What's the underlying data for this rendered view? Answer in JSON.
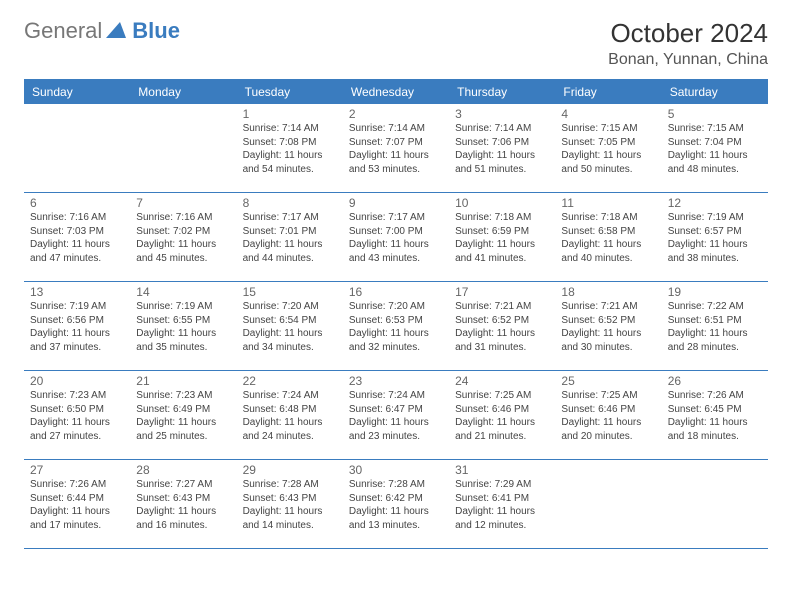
{
  "logo": {
    "general": "General",
    "blue": "Blue"
  },
  "title": "October 2024",
  "location": "Bonan, Yunnan, China",
  "colors": {
    "accent": "#3a7cbf",
    "bg": "#ffffff",
    "text": "#333333",
    "muted": "#666666",
    "sub": "#555555"
  },
  "dayNames": [
    "Sunday",
    "Monday",
    "Tuesday",
    "Wednesday",
    "Thursday",
    "Friday",
    "Saturday"
  ],
  "weeks": [
    [
      {
        "num": "",
        "sunrise": "",
        "sunset": "",
        "daylight": ""
      },
      {
        "num": "",
        "sunrise": "",
        "sunset": "",
        "daylight": ""
      },
      {
        "num": "1",
        "sunrise": "Sunrise: 7:14 AM",
        "sunset": "Sunset: 7:08 PM",
        "daylight": "Daylight: 11 hours and 54 minutes."
      },
      {
        "num": "2",
        "sunrise": "Sunrise: 7:14 AM",
        "sunset": "Sunset: 7:07 PM",
        "daylight": "Daylight: 11 hours and 53 minutes."
      },
      {
        "num": "3",
        "sunrise": "Sunrise: 7:14 AM",
        "sunset": "Sunset: 7:06 PM",
        "daylight": "Daylight: 11 hours and 51 minutes."
      },
      {
        "num": "4",
        "sunrise": "Sunrise: 7:15 AM",
        "sunset": "Sunset: 7:05 PM",
        "daylight": "Daylight: 11 hours and 50 minutes."
      },
      {
        "num": "5",
        "sunrise": "Sunrise: 7:15 AM",
        "sunset": "Sunset: 7:04 PM",
        "daylight": "Daylight: 11 hours and 48 minutes."
      }
    ],
    [
      {
        "num": "6",
        "sunrise": "Sunrise: 7:16 AM",
        "sunset": "Sunset: 7:03 PM",
        "daylight": "Daylight: 11 hours and 47 minutes."
      },
      {
        "num": "7",
        "sunrise": "Sunrise: 7:16 AM",
        "sunset": "Sunset: 7:02 PM",
        "daylight": "Daylight: 11 hours and 45 minutes."
      },
      {
        "num": "8",
        "sunrise": "Sunrise: 7:17 AM",
        "sunset": "Sunset: 7:01 PM",
        "daylight": "Daylight: 11 hours and 44 minutes."
      },
      {
        "num": "9",
        "sunrise": "Sunrise: 7:17 AM",
        "sunset": "Sunset: 7:00 PM",
        "daylight": "Daylight: 11 hours and 43 minutes."
      },
      {
        "num": "10",
        "sunrise": "Sunrise: 7:18 AM",
        "sunset": "Sunset: 6:59 PM",
        "daylight": "Daylight: 11 hours and 41 minutes."
      },
      {
        "num": "11",
        "sunrise": "Sunrise: 7:18 AM",
        "sunset": "Sunset: 6:58 PM",
        "daylight": "Daylight: 11 hours and 40 minutes."
      },
      {
        "num": "12",
        "sunrise": "Sunrise: 7:19 AM",
        "sunset": "Sunset: 6:57 PM",
        "daylight": "Daylight: 11 hours and 38 minutes."
      }
    ],
    [
      {
        "num": "13",
        "sunrise": "Sunrise: 7:19 AM",
        "sunset": "Sunset: 6:56 PM",
        "daylight": "Daylight: 11 hours and 37 minutes."
      },
      {
        "num": "14",
        "sunrise": "Sunrise: 7:19 AM",
        "sunset": "Sunset: 6:55 PM",
        "daylight": "Daylight: 11 hours and 35 minutes."
      },
      {
        "num": "15",
        "sunrise": "Sunrise: 7:20 AM",
        "sunset": "Sunset: 6:54 PM",
        "daylight": "Daylight: 11 hours and 34 minutes."
      },
      {
        "num": "16",
        "sunrise": "Sunrise: 7:20 AM",
        "sunset": "Sunset: 6:53 PM",
        "daylight": "Daylight: 11 hours and 32 minutes."
      },
      {
        "num": "17",
        "sunrise": "Sunrise: 7:21 AM",
        "sunset": "Sunset: 6:52 PM",
        "daylight": "Daylight: 11 hours and 31 minutes."
      },
      {
        "num": "18",
        "sunrise": "Sunrise: 7:21 AM",
        "sunset": "Sunset: 6:52 PM",
        "daylight": "Daylight: 11 hours and 30 minutes."
      },
      {
        "num": "19",
        "sunrise": "Sunrise: 7:22 AM",
        "sunset": "Sunset: 6:51 PM",
        "daylight": "Daylight: 11 hours and 28 minutes."
      }
    ],
    [
      {
        "num": "20",
        "sunrise": "Sunrise: 7:23 AM",
        "sunset": "Sunset: 6:50 PM",
        "daylight": "Daylight: 11 hours and 27 minutes."
      },
      {
        "num": "21",
        "sunrise": "Sunrise: 7:23 AM",
        "sunset": "Sunset: 6:49 PM",
        "daylight": "Daylight: 11 hours and 25 minutes."
      },
      {
        "num": "22",
        "sunrise": "Sunrise: 7:24 AM",
        "sunset": "Sunset: 6:48 PM",
        "daylight": "Daylight: 11 hours and 24 minutes."
      },
      {
        "num": "23",
        "sunrise": "Sunrise: 7:24 AM",
        "sunset": "Sunset: 6:47 PM",
        "daylight": "Daylight: 11 hours and 23 minutes."
      },
      {
        "num": "24",
        "sunrise": "Sunrise: 7:25 AM",
        "sunset": "Sunset: 6:46 PM",
        "daylight": "Daylight: 11 hours and 21 minutes."
      },
      {
        "num": "25",
        "sunrise": "Sunrise: 7:25 AM",
        "sunset": "Sunset: 6:46 PM",
        "daylight": "Daylight: 11 hours and 20 minutes."
      },
      {
        "num": "26",
        "sunrise": "Sunrise: 7:26 AM",
        "sunset": "Sunset: 6:45 PM",
        "daylight": "Daylight: 11 hours and 18 minutes."
      }
    ],
    [
      {
        "num": "27",
        "sunrise": "Sunrise: 7:26 AM",
        "sunset": "Sunset: 6:44 PM",
        "daylight": "Daylight: 11 hours and 17 minutes."
      },
      {
        "num": "28",
        "sunrise": "Sunrise: 7:27 AM",
        "sunset": "Sunset: 6:43 PM",
        "daylight": "Daylight: 11 hours and 16 minutes."
      },
      {
        "num": "29",
        "sunrise": "Sunrise: 7:28 AM",
        "sunset": "Sunset: 6:43 PM",
        "daylight": "Daylight: 11 hours and 14 minutes."
      },
      {
        "num": "30",
        "sunrise": "Sunrise: 7:28 AM",
        "sunset": "Sunset: 6:42 PM",
        "daylight": "Daylight: 11 hours and 13 minutes."
      },
      {
        "num": "31",
        "sunrise": "Sunrise: 7:29 AM",
        "sunset": "Sunset: 6:41 PM",
        "daylight": "Daylight: 11 hours and 12 minutes."
      },
      {
        "num": "",
        "sunrise": "",
        "sunset": "",
        "daylight": ""
      },
      {
        "num": "",
        "sunrise": "",
        "sunset": "",
        "daylight": ""
      }
    ]
  ]
}
